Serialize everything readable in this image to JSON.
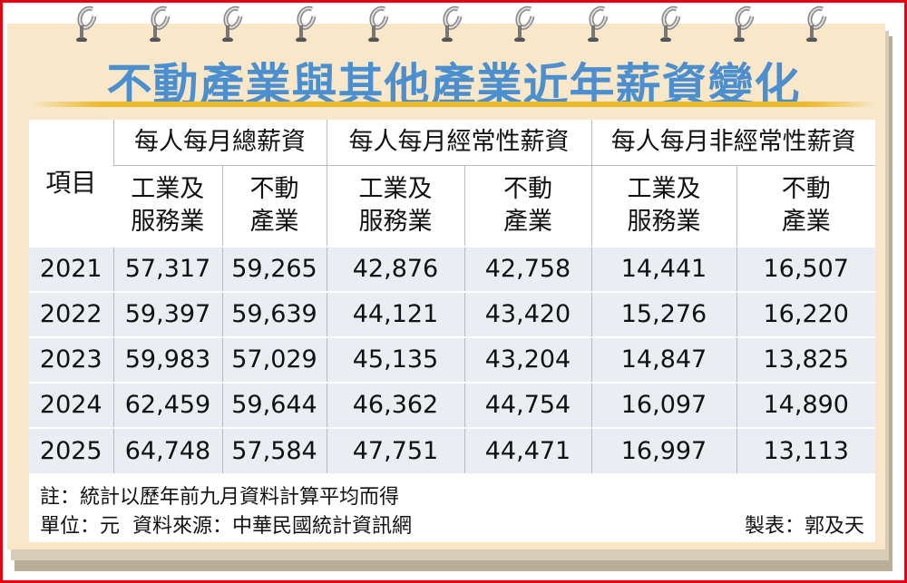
{
  "title": "不動產業與其他產業近年薪資變化",
  "table": {
    "item_header": "項目",
    "groups": [
      "每人每月總薪資",
      "每人每月經常性薪資",
      "每人每月非經常性薪資"
    ],
    "subheaders": [
      [
        "工業及",
        "服務業"
      ],
      [
        "不動",
        "產業"
      ],
      [
        "工業及",
        "服務業"
      ],
      [
        "不動",
        "產業"
      ],
      [
        "工業及",
        "服務業"
      ],
      [
        "不動",
        "產業"
      ]
    ],
    "rows": [
      [
        "2021",
        "57,317",
        "59,265",
        "42,876",
        "42,758",
        "14,441",
        "16,507"
      ],
      [
        "2022",
        "59,397",
        "59,639",
        "44,121",
        "43,420",
        "15,276",
        "16,220"
      ],
      [
        "2023",
        "59,983",
        "57,029",
        "45,135",
        "43,204",
        "14,847",
        "13,825"
      ],
      [
        "2024",
        "62,459",
        "59,644",
        "46,362",
        "44,754",
        "16,097",
        "14,890"
      ],
      [
        "2025",
        "64,748",
        "57,584",
        "47,751",
        "44,471",
        "16,997",
        "13,113"
      ]
    ]
  },
  "notes": {
    "note": "註：統計以歷年前九月資料計算平均而得",
    "unit_source": "單位：元  資料來源：中華民國統計資訊網",
    "credit": "製表：郭及天"
  },
  "colors": {
    "title": "#4c8fcf",
    "paper": "#f8e7c8",
    "border": "#e60012",
    "accent_rule": "#ecb92a",
    "row_bg": "#eaeef3"
  }
}
